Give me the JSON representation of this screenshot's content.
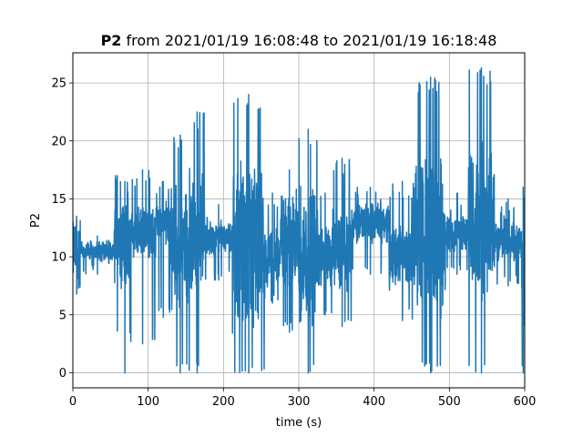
{
  "chart_data": {
    "type": "line",
    "title_bold": "P2",
    "title_rest": " from 2021/01/19 16:08:48 to 2021/01/19 16:18:48",
    "xlabel": "time (s)",
    "ylabel": "P2",
    "xlim": [
      0,
      600
    ],
    "ylim": [
      -1.3,
      27.6
    ],
    "xticks": [
      0,
      100,
      200,
      300,
      400,
      500,
      600
    ],
    "yticks": [
      0,
      5,
      10,
      15,
      20,
      25
    ],
    "grid": true,
    "line_color": "#1f77b4",
    "series": [
      {
        "regions": [
          {
            "x0": 0,
            "x1": 10,
            "center": 10.5,
            "amp": 3,
            "max": 13.5,
            "min": 6.8
          },
          {
            "x0": 10,
            "x1": 55,
            "center": 10.5,
            "amp": 1,
            "max": 11.8,
            "min": 8.5
          },
          {
            "x0": 55,
            "x1": 63,
            "center": 11.5,
            "amp": 4,
            "max": 17,
            "min": 3.6
          },
          {
            "x0": 63,
            "x1": 75,
            "center": 11,
            "amp": 5,
            "max": 16.5,
            "min": 0
          },
          {
            "x0": 75,
            "x1": 110,
            "center": 12,
            "amp": 2.5,
            "max": 17.5,
            "min": 2.5
          },
          {
            "x0": 110,
            "x1": 130,
            "center": 13,
            "amp": 2,
            "max": 16.5,
            "min": 4.8
          },
          {
            "x0": 130,
            "x1": 155,
            "center": 11,
            "amp": 6,
            "max": 20.5,
            "min": 0
          },
          {
            "x0": 155,
            "x1": 175,
            "center": 12,
            "amp": 6,
            "max": 22.5,
            "min": 0
          },
          {
            "x0": 175,
            "x1": 212,
            "center": 11.5,
            "amp": 1.5,
            "max": 14.5,
            "min": 8
          },
          {
            "x0": 212,
            "x1": 255,
            "center": 11,
            "amp": 8,
            "max": 24,
            "min": 0
          },
          {
            "x0": 255,
            "x1": 275,
            "center": 10,
            "amp": 3,
            "max": 15.5,
            "min": 6
          },
          {
            "x0": 275,
            "x1": 300,
            "center": 11.5,
            "amp": 5,
            "max": 17.5,
            "min": 3.5
          },
          {
            "x0": 300,
            "x1": 325,
            "center": 10,
            "amp": 7,
            "max": 21,
            "min": 0
          },
          {
            "x0": 325,
            "x1": 345,
            "center": 10,
            "amp": 3,
            "max": 15.5,
            "min": 5
          },
          {
            "x0": 345,
            "x1": 370,
            "center": 10.5,
            "amp": 4,
            "max": 18.5,
            "min": 4
          },
          {
            "x0": 370,
            "x1": 420,
            "center": 13,
            "amp": 2,
            "max": 16,
            "min": 8.5
          },
          {
            "x0": 420,
            "x1": 455,
            "center": 10,
            "amp": 3,
            "max": 16.5,
            "min": 4.5
          },
          {
            "x0": 455,
            "x1": 495,
            "center": 12,
            "amp": 8,
            "max": 25.5,
            "min": 0
          },
          {
            "x0": 495,
            "x1": 525,
            "center": 12,
            "amp": 1.8,
            "max": 15.5,
            "min": 8.5
          },
          {
            "x0": 525,
            "x1": 560,
            "center": 13,
            "amp": 8,
            "max": 26.3,
            "min": 0
          },
          {
            "x0": 560,
            "x1": 596,
            "center": 11.5,
            "amp": 2,
            "max": 15,
            "min": 7.5
          },
          {
            "x0": 596,
            "x1": 600,
            "center": 8,
            "amp": 8,
            "max": 16,
            "min": 0
          }
        ]
      }
    ]
  }
}
